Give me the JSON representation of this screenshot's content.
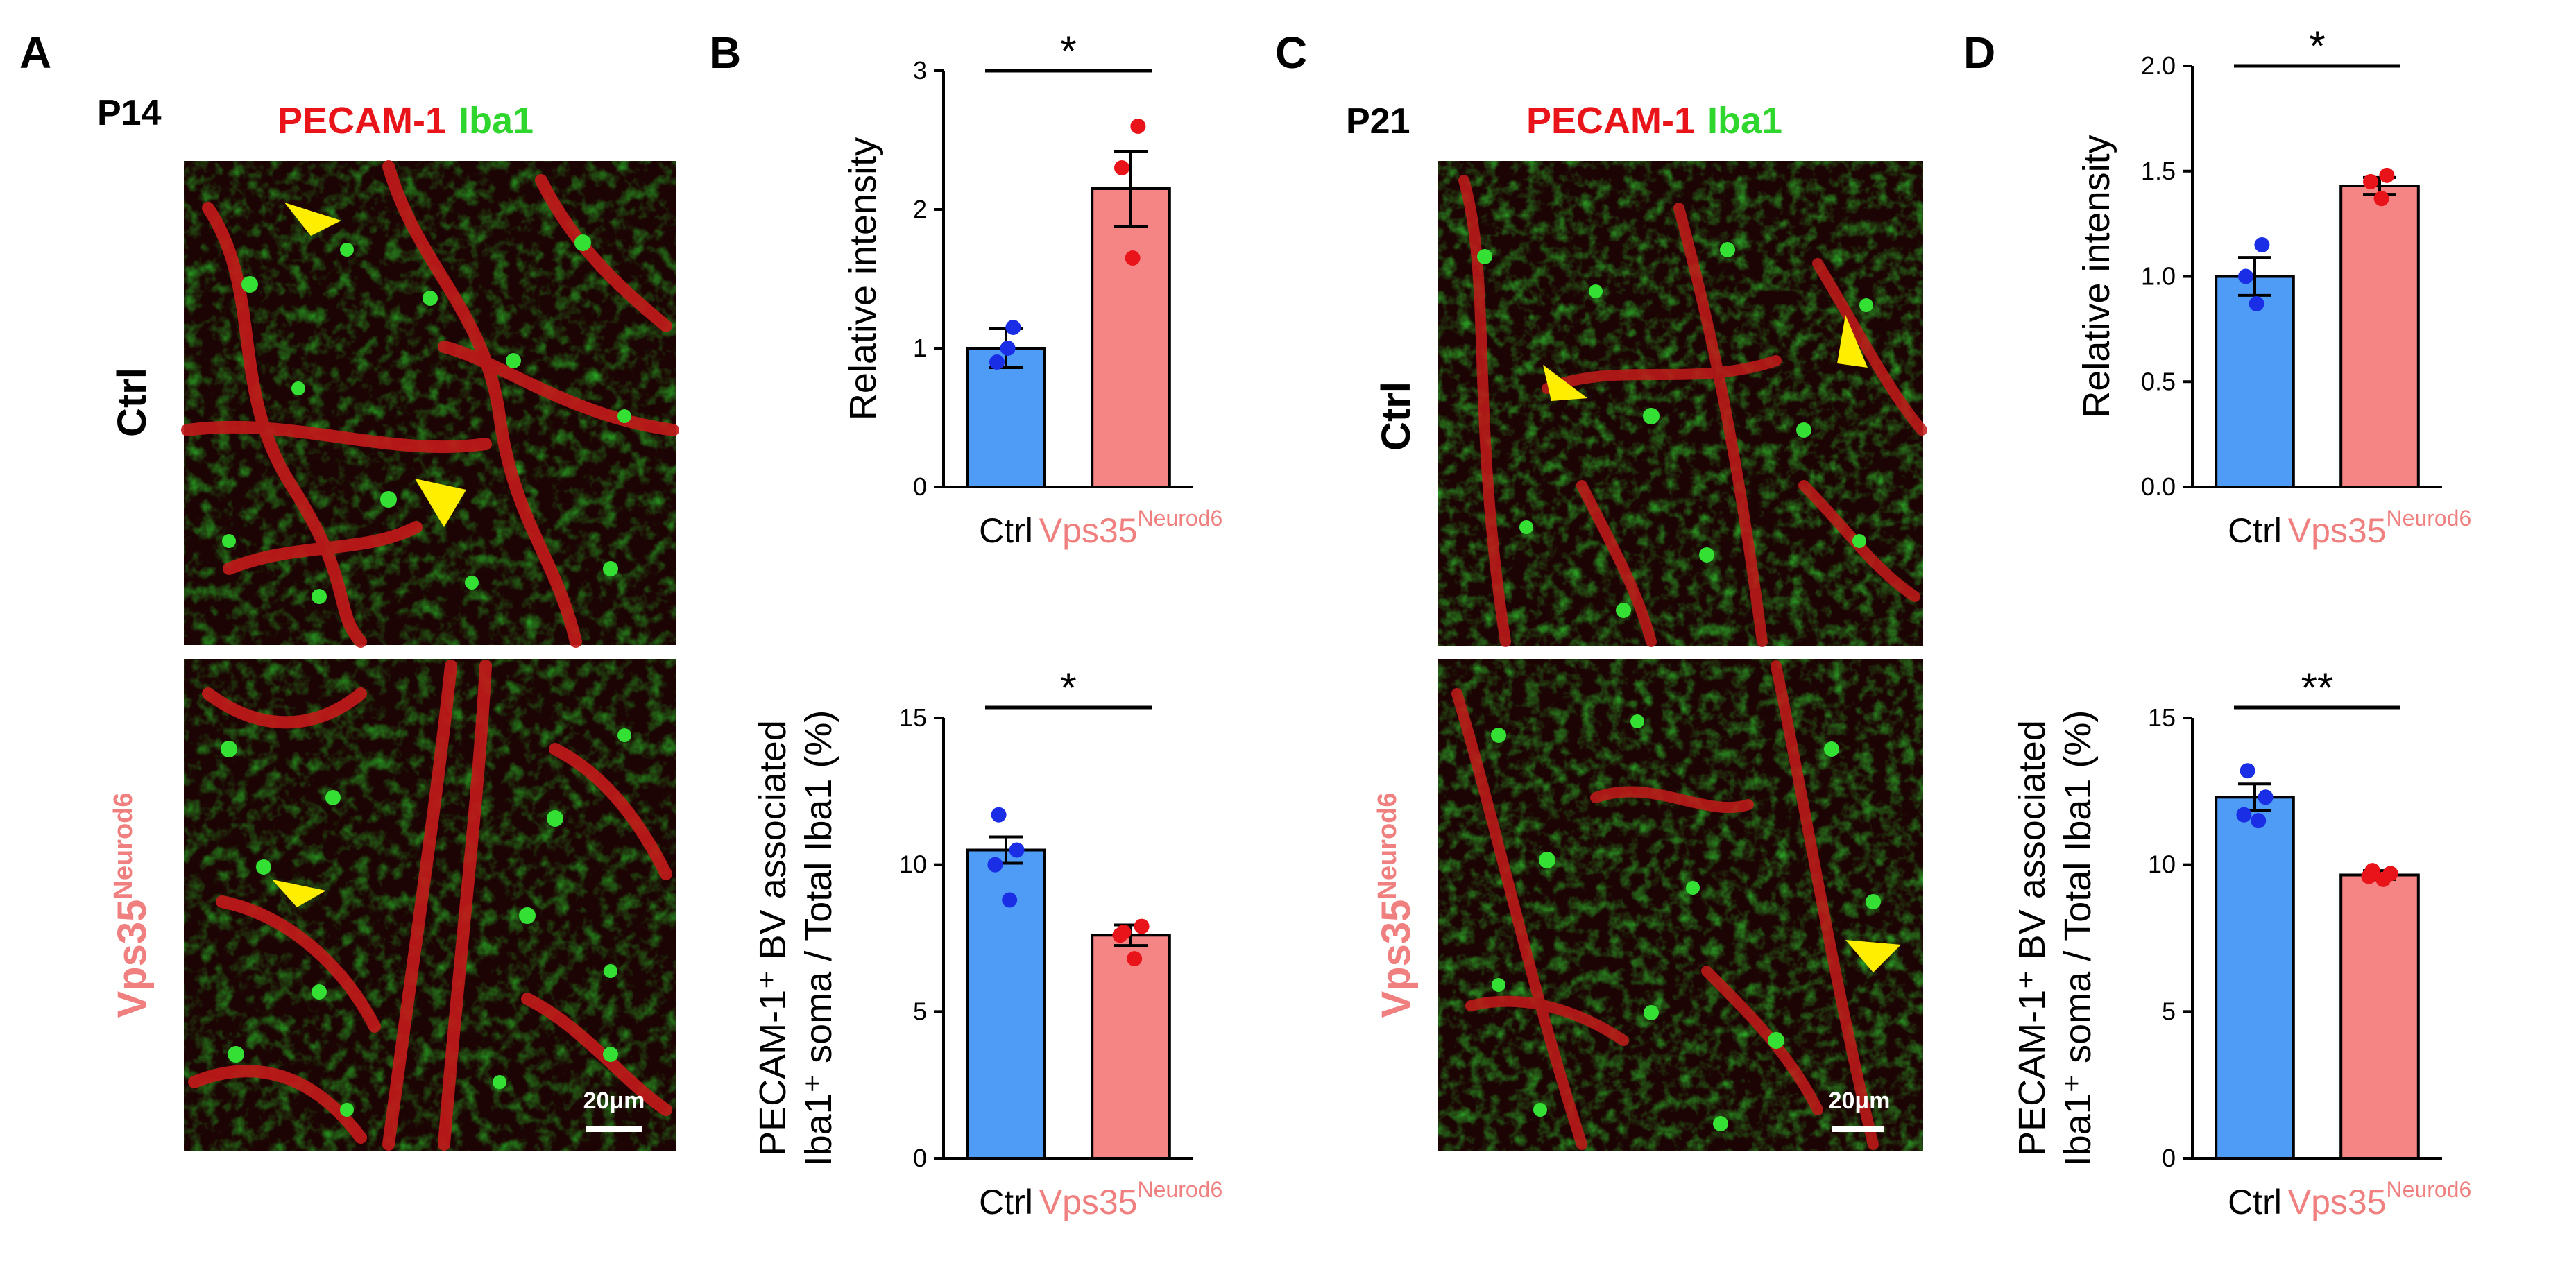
{
  "colors": {
    "ctrl": "#4f9cf7",
    "mutant": "#f58585",
    "ctrl_dot": "#1a2ee6",
    "mutant_dot": "#e8141a",
    "red_label": "#e8141a",
    "green_label": "#2ed62e",
    "pink_label": "#f08080",
    "arrow": "#ffee00"
  },
  "panels": {
    "A": {
      "letter": "A",
      "age": "P14",
      "stain_red": "PECAM-1",
      "stain_green": "Iba1",
      "row_top": "Ctrl",
      "row_bottom_main": "Vps35",
      "row_bottom_sup": "Neurod6",
      "scalebar": "20μm"
    },
    "B": {
      "letter": "B"
    },
    "C": {
      "letter": "C",
      "age": "P21",
      "stain_red": "PECAM-1",
      "stain_green": "Iba1",
      "row_top": "Ctrl",
      "row_bottom_main": "Vps35",
      "row_bottom_sup": "Neurod6",
      "scalebar": "20μm"
    },
    "D": {
      "letter": "D"
    }
  },
  "chart_data": [
    {
      "type": "bar",
      "panel": "B",
      "categories": [
        "Ctrl",
        "Vps35"
      ],
      "category_sup": [
        "",
        "Neurod6"
      ],
      "values": [
        1.0,
        2.15
      ],
      "sem": [
        0.14,
        0.27
      ],
      "points": [
        [
          1.15,
          0.9,
          1.0
        ],
        [
          2.6,
          2.3,
          1.65
        ]
      ],
      "ylabel": [
        "Relative intensity"
      ],
      "ylim": [
        0,
        3
      ],
      "yticks": [
        "0",
        "1",
        "2",
        "3"
      ],
      "significance": "*"
    },
    {
      "type": "bar",
      "panel": "B",
      "categories": [
        "Ctrl",
        "Vps35"
      ],
      "category_sup": [
        "",
        "Neurod6"
      ],
      "values": [
        10.5,
        7.6
      ],
      "sem": [
        0.45,
        0.35
      ],
      "points": [
        [
          11.7,
          10.5,
          10.0,
          8.8
        ],
        [
          7.7,
          7.9,
          7.6,
          6.8
        ]
      ],
      "ylabel": [
        "PECAM-1⁺ BV associated",
        "Iba1⁺ soma / Total Iba1 (%)"
      ],
      "ylim": [
        0,
        15
      ],
      "yticks": [
        "0",
        "5",
        "10",
        "15"
      ],
      "significance": "*"
    },
    {
      "type": "bar",
      "panel": "D",
      "categories": [
        "Ctrl",
        "Vps35"
      ],
      "category_sup": [
        "",
        "Neurod6"
      ],
      "values": [
        1.0,
        1.43
      ],
      "sem": [
        0.09,
        0.04
      ],
      "points": [
        [
          1.15,
          1.0,
          0.87
        ],
        [
          1.48,
          1.45,
          1.37
        ]
      ],
      "ylabel": [
        "Relative intensity"
      ],
      "ylim": [
        0,
        2.0
      ],
      "yticks": [
        "0.0",
        "0.5",
        "1.0",
        "1.5",
        "2.0"
      ],
      "significance": "*"
    },
    {
      "type": "bar",
      "panel": "D",
      "categories": [
        "Ctrl",
        "Vps35"
      ],
      "category_sup": [
        "",
        "Neurod6"
      ],
      "values": [
        12.3,
        9.65
      ],
      "sem": [
        0.45,
        0.15
      ],
      "points": [
        [
          13.2,
          12.3,
          11.7,
          11.5
        ],
        [
          9.8,
          9.7,
          9.6,
          9.5
        ]
      ],
      "ylabel": [
        "PECAM-1⁺ BV associated",
        "Iba1⁺ soma / Total Iba1 (%)"
      ],
      "ylim": [
        0,
        15
      ],
      "yticks": [
        "0",
        "5",
        "10",
        "15"
      ],
      "significance": "**"
    }
  ]
}
